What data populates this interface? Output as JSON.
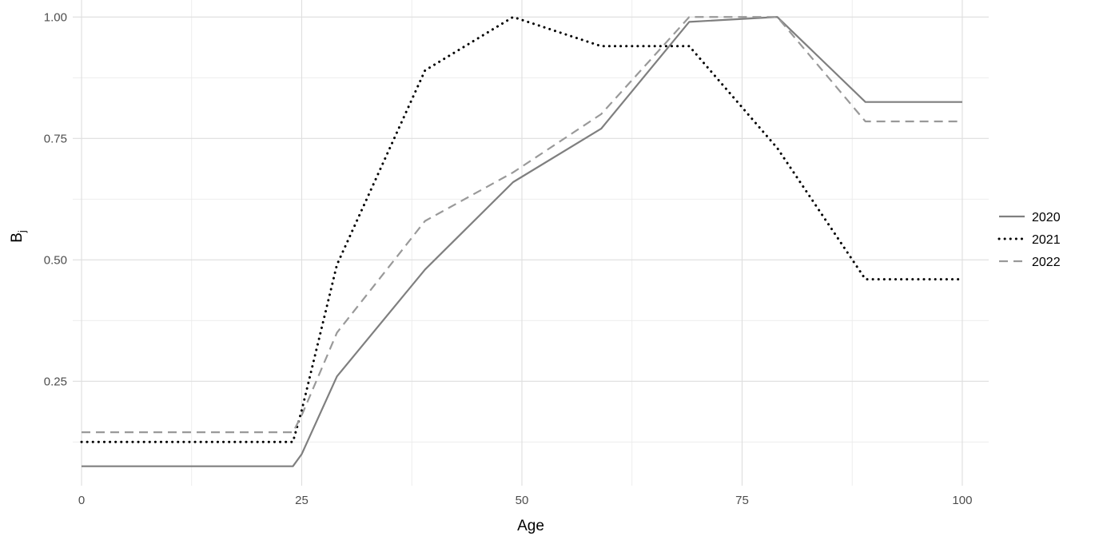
{
  "chart_data": {
    "type": "line",
    "title": "",
    "xlabel": "Age",
    "ylabel": "B",
    "ylabel_subscript": "j",
    "xlim": [
      -1,
      103
    ],
    "ylim": [
      0.035,
      1.035
    ],
    "x_ticks": [
      0,
      25,
      50,
      75,
      100
    ],
    "x_tick_labels": [
      "0",
      "25",
      "50",
      "75",
      "100"
    ],
    "y_ticks": [
      0.25,
      0.5,
      0.75,
      1.0
    ],
    "y_tick_labels": [
      "0.25",
      "0.50",
      "0.75",
      "1.00"
    ],
    "grid": true,
    "legend_position": "right",
    "series": [
      {
        "name": "2020",
        "line_style": "solid",
        "color": "#7f7f7f",
        "x": [
          0,
          24,
          25,
          29,
          39,
          49,
          59,
          69,
          79,
          89,
          100
        ],
        "y": [
          0.075,
          0.075,
          0.1,
          0.26,
          0.48,
          0.66,
          0.77,
          0.99,
          1.0,
          0.825,
          0.825
        ]
      },
      {
        "name": "2021",
        "line_style": "dotted",
        "color": "#000000",
        "x": [
          0,
          24,
          25,
          29,
          39,
          49,
          59,
          69,
          79,
          89,
          100
        ],
        "y": [
          0.125,
          0.125,
          0.19,
          0.49,
          0.89,
          1.0,
          0.94,
          0.94,
          0.73,
          0.46,
          0.46
        ]
      },
      {
        "name": "2022",
        "line_style": "dashed",
        "color": "#999999",
        "x": [
          0,
          24,
          25,
          29,
          39,
          49,
          59,
          69,
          79,
          89,
          100
        ],
        "y": [
          0.145,
          0.145,
          0.18,
          0.35,
          0.58,
          0.68,
          0.8,
          1.0,
          1.0,
          0.785,
          0.785
        ]
      }
    ]
  }
}
